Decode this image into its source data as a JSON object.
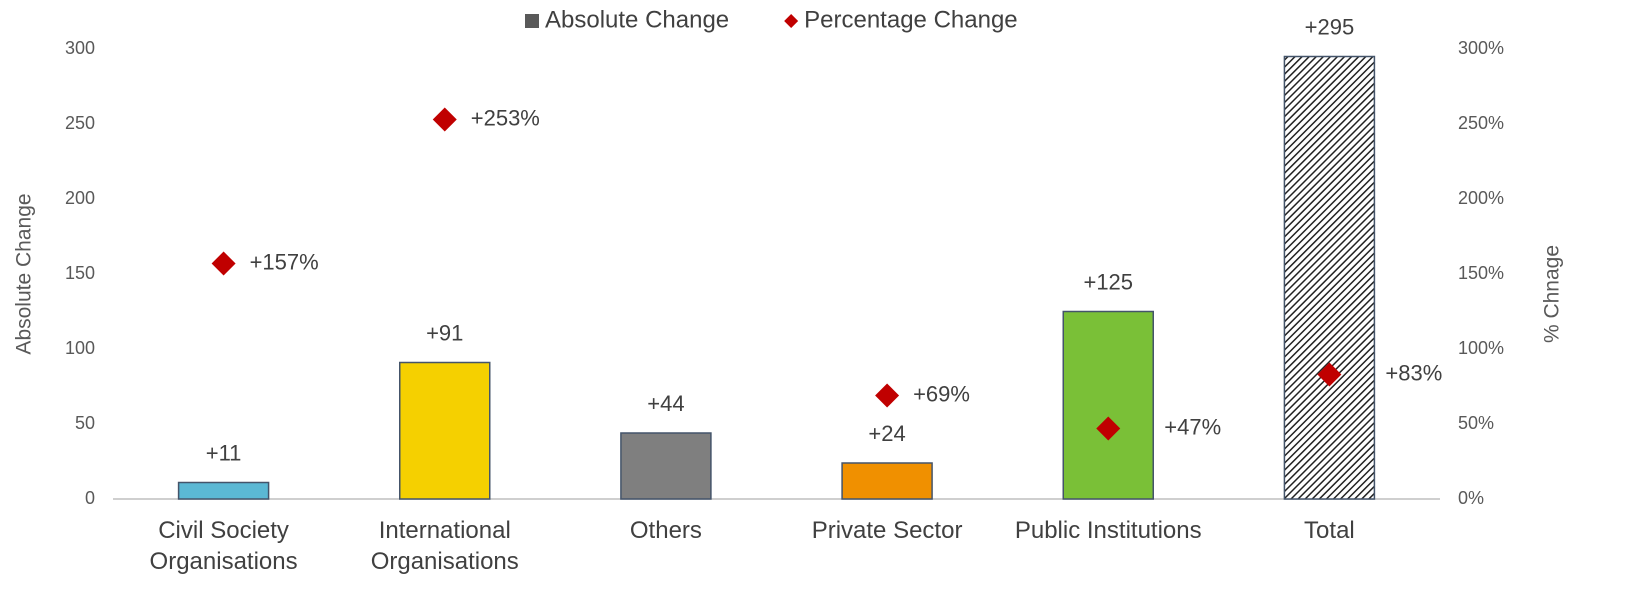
{
  "chart_data": {
    "type": "bar",
    "categories": [
      "Civil Society Organisations",
      "International Organisations",
      "Others",
      "Private Sector",
      "Public Institutions",
      "Total"
    ],
    "series": [
      {
        "name": "Absolute Change",
        "type": "bar",
        "color": "#595959",
        "colors": [
          "#5bb8d4",
          "#f5d000",
          "#7f7f7f",
          "#f09000",
          "#7ac037",
          "hatch"
        ],
        "values": [
          11,
          91,
          44,
          24,
          125,
          295
        ],
        "value_labels": [
          "+11",
          "+91",
          "+44",
          "+24",
          "+125",
          "+295"
        ]
      },
      {
        "name": "Percentage Change",
        "type": "scatter",
        "axis": "y2",
        "color": "#c00000",
        "values": [
          157,
          253,
          null,
          69,
          47,
          83
        ],
        "value_labels": [
          "+157%",
          "+253%",
          null,
          "+69%",
          "+47%",
          "+83%"
        ]
      }
    ],
    "ylabel": "Absolute Change",
    "y2label": "% Chnage",
    "ylim": [
      0,
      300
    ],
    "yticks": [
      0,
      50,
      100,
      150,
      200,
      250,
      300
    ],
    "y2lim": [
      0,
      300
    ],
    "y2ticks": [
      {
        "value": 0,
        "label": "0%"
      },
      {
        "value": 50,
        "label": "50%"
      },
      {
        "value": 100,
        "label": "100%"
      },
      {
        "value": 150,
        "label": "150%"
      },
      {
        "value": 200,
        "label": "200%"
      },
      {
        "value": 250,
        "label": "250%"
      },
      {
        "value": 300,
        "label": "300%"
      }
    ],
    "legend": "top",
    "grid": false
  }
}
